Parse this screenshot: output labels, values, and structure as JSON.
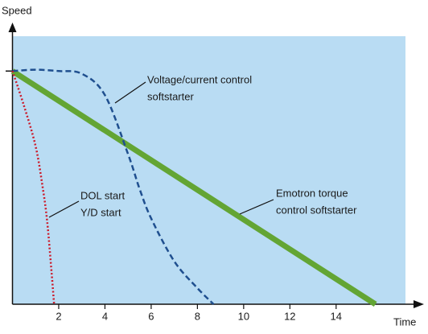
{
  "chart_data": {
    "type": "line",
    "x_label": "Time",
    "y_label": "Speed",
    "xlim": [
      0,
      17
    ],
    "ylim": [
      0,
      100
    ],
    "xticks": [
      2,
      4,
      6,
      8,
      10,
      12,
      14
    ],
    "background": "#b9dcf3",
    "series": [
      {
        "color": "#63a534",
        "style": "solid",
        "x": [
          0,
          15.7
        ],
        "values": [
          87,
          0
        ]
      },
      {
        "color": "#1f4f8f",
        "style": "dashed",
        "x": [
          0,
          1,
          2,
          3,
          4,
          5,
          5.5,
          6,
          7,
          8,
          8.7
        ],
        "values": [
          87,
          87.5,
          87,
          86,
          78,
          56,
          43,
          32,
          16,
          6,
          0
        ]
      },
      {
        "color": "#cc1a2a",
        "style": "dotted",
        "x": [
          0,
          0.5,
          1,
          1.3,
          1.5,
          1.7,
          1.8
        ],
        "values": [
          87,
          74,
          59,
          44,
          31,
          11,
          0
        ]
      }
    ],
    "annotations": [
      {
        "text": [
          "Voltage/current control",
          "softstarter"
        ]
      },
      {
        "text": [
          "DOL start",
          "Y/D start"
        ]
      },
      {
        "text": [
          "Emotron torque",
          "control softstarter"
        ]
      }
    ]
  }
}
